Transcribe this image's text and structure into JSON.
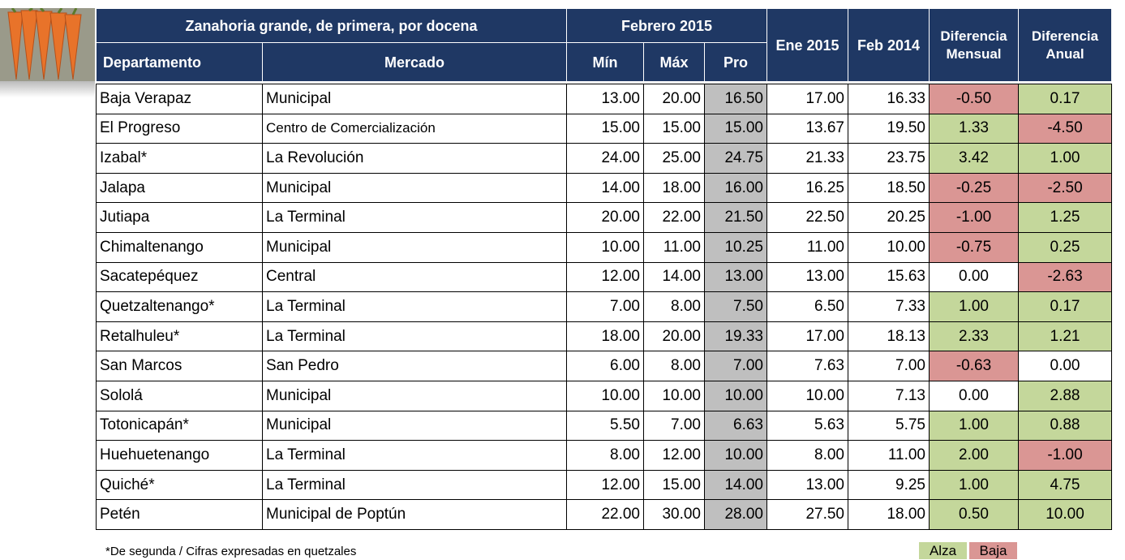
{
  "header": {
    "title": "Zanahoria grande, de primera, por docena",
    "period": "Febrero 2015",
    "columns": [
      "Departamento",
      "Mercado",
      "Mín",
      "Máx",
      "Pro",
      "Ene 2015",
      "Feb 2014",
      "Diferencia Mensual",
      "Diferencia Anual"
    ]
  },
  "table": {
    "rows": [
      [
        "Baja Verapaz",
        "Municipal",
        "13.00",
        "20.00",
        "16.50",
        "17.00",
        "16.33",
        "-0.50",
        "0.17"
      ],
      [
        "El Progreso",
        "Centro de Comercialización",
        "15.00",
        "15.00",
        "15.00",
        "13.67",
        "19.50",
        "1.33",
        "-4.50"
      ],
      [
        "Izabal*",
        "La Revolución",
        "24.00",
        "25.00",
        "24.75",
        "21.33",
        "23.75",
        "3.42",
        "1.00"
      ],
      [
        "Jalapa",
        "Municipal",
        "14.00",
        "18.00",
        "16.00",
        "16.25",
        "18.50",
        "-0.25",
        "-2.50"
      ],
      [
        "Jutiapa",
        "La Terminal",
        "20.00",
        "22.00",
        "21.50",
        "22.50",
        "20.25",
        "-1.00",
        "1.25"
      ],
      [
        "Chimaltenango",
        "Municipal",
        "10.00",
        "11.00",
        "10.25",
        "11.00",
        "10.00",
        "-0.75",
        "0.25"
      ],
      [
        "Sacatepéquez",
        "Central",
        "12.00",
        "14.00",
        "13.00",
        "13.00",
        "15.63",
        "0.00",
        "-2.63"
      ],
      [
        "Quetzaltenango*",
        "La Terminal",
        "7.00",
        "8.00",
        "7.50",
        "6.50",
        "7.33",
        "1.00",
        "0.17"
      ],
      [
        "Retalhuleu*",
        "La Terminal",
        "18.00",
        "20.00",
        "19.33",
        "17.00",
        "18.13",
        "2.33",
        "1.21"
      ],
      [
        "San Marcos",
        "San Pedro",
        "6.00",
        "8.00",
        "7.00",
        "7.63",
        "7.00",
        "-0.63",
        "0.00"
      ],
      [
        "Sololá",
        "Municipal",
        "10.00",
        "10.00",
        "10.00",
        "10.00",
        "7.13",
        "0.00",
        "2.88"
      ],
      [
        "Totonicapán*",
        "Municipal",
        "5.50",
        "7.00",
        "6.63",
        "5.63",
        "5.75",
        "1.00",
        "0.88"
      ],
      [
        "Huehuetenango",
        "La Terminal",
        "8.00",
        "12.00",
        "10.00",
        "8.00",
        "11.00",
        "2.00",
        "-1.00"
      ],
      [
        "Quiché*",
        "La Terminal",
        "12.00",
        "15.00",
        "14.00",
        "13.00",
        "9.25",
        "1.00",
        "4.75"
      ],
      [
        "Petén",
        "Municipal de Poptún",
        "22.00",
        "30.00",
        "28.00",
        "27.50",
        "18.00",
        "0.50",
        "10.00"
      ]
    ]
  },
  "footer": {
    "note": "*De segunda / Cifras expresadas en quetzales",
    "legend": [
      {
        "label": "Alza",
        "color": "#c4d79b"
      },
      {
        "label": "Baja",
        "color": "#da9694"
      }
    ]
  }
}
